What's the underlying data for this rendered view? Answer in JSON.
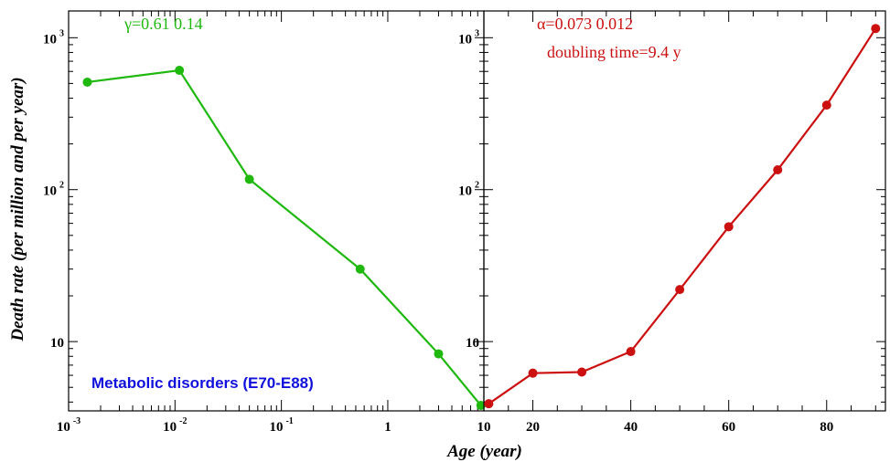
{
  "colors": {
    "left_series": "#1fb80f",
    "right_series": "#cc1010",
    "dataset_label": "#1010dd",
    "axes": "#000000"
  },
  "y_axis_title": "Death rate (per million and per year)",
  "x_axis_title": "Age (year)",
  "chart_data": [
    {
      "type": "line",
      "panel": "left",
      "x_scale": "log",
      "y_scale": "log",
      "xlim": [
        0.001,
        8
      ],
      "ylim": [
        3.5,
        1500
      ],
      "x_ticks": [
        {
          "value": 0.001,
          "base": "10",
          "exp": "-3"
        },
        {
          "value": 0.01,
          "base": "10",
          "exp": "-2"
        },
        {
          "value": 0.1,
          "base": "10",
          "exp": "-1"
        },
        {
          "value": 1,
          "base": "1",
          "exp": ""
        }
      ],
      "y_ticks": [
        {
          "value": 10,
          "base": "10",
          "exp": ""
        },
        {
          "value": 100,
          "base": "10",
          "exp": "2"
        },
        {
          "value": 1000,
          "base": "10",
          "exp": "3"
        }
      ],
      "annotation": "γ=0.61 0.14",
      "dataset_label": "Metabolic disorders (E70-E88)",
      "x": [
        0.0015,
        0.011,
        0.05,
        0.55,
        3,
        7.5
      ],
      "y": [
        510,
        610,
        117,
        30,
        8.3,
        3.8
      ]
    },
    {
      "type": "line",
      "panel": "right",
      "x_scale": "linear",
      "y_scale": "log",
      "xlim": [
        10,
        92
      ],
      "ylim": [
        3.5,
        1500
      ],
      "x_ticks": [
        {
          "value": 10,
          "label": "10"
        },
        {
          "value": 20,
          "label": "20"
        },
        {
          "value": 40,
          "label": "40"
        },
        {
          "value": 60,
          "label": "60"
        },
        {
          "value": 80,
          "label": "80"
        }
      ],
      "y_ticks": [
        {
          "value": 10,
          "base": "10",
          "exp": ""
        },
        {
          "value": 100,
          "base": "10",
          "exp": "2"
        },
        {
          "value": 1000,
          "base": "10",
          "exp": "3"
        }
      ],
      "annotation": "α=0.073 0.012",
      "annotation2": "doubling time=9.4 y",
      "x": [
        11,
        20,
        30,
        40,
        50,
        60,
        70,
        80,
        90
      ],
      "y": [
        3.9,
        6.2,
        6.3,
        8.6,
        22,
        57,
        135,
        360,
        1150
      ]
    }
  ]
}
